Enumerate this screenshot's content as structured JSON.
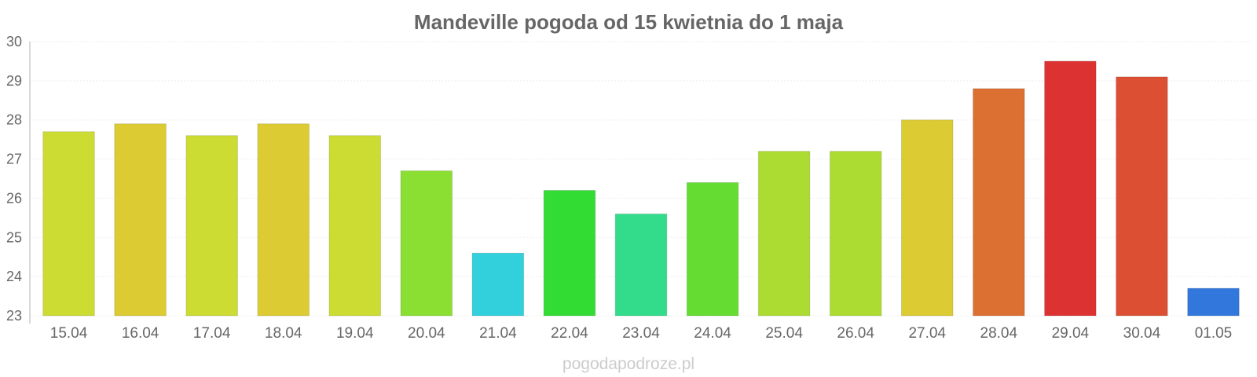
{
  "watermark": "pogodapodroze.pl",
  "chart_data": {
    "type": "bar",
    "title": "Mandeville pogoda od 15 kwietnia do 1 maja",
    "xlabel": "",
    "ylabel": "",
    "categories": [
      "15.04",
      "16.04",
      "17.04",
      "18.04",
      "19.04",
      "20.04",
      "21.04",
      "22.04",
      "23.04",
      "24.04",
      "25.04",
      "26.04",
      "27.04",
      "28.04",
      "29.04",
      "30.04",
      "01.05"
    ],
    "values": [
      27.7,
      27.9,
      27.6,
      27.9,
      27.6,
      26.7,
      24.6,
      26.2,
      25.6,
      26.4,
      27.2,
      27.2,
      28.0,
      28.8,
      29.5,
      29.1,
      23.7
    ],
    "colors": [
      "#cddc32",
      "#dccb32",
      "#cddc32",
      "#dccb32",
      "#cddc32",
      "#8bdf32",
      "#32cfdc",
      "#32dc32",
      "#32dc8a",
      "#64dc32",
      "#acdc32",
      "#acdc32",
      "#dccb32",
      "#dc6f32",
      "#dc3232",
      "#dc4f32",
      "#3278dc"
    ],
    "ylim": [
      23,
      30
    ],
    "yticks": [
      23,
      24,
      25,
      26,
      27,
      28,
      29,
      30
    ],
    "grid": true,
    "legend": "none"
  }
}
